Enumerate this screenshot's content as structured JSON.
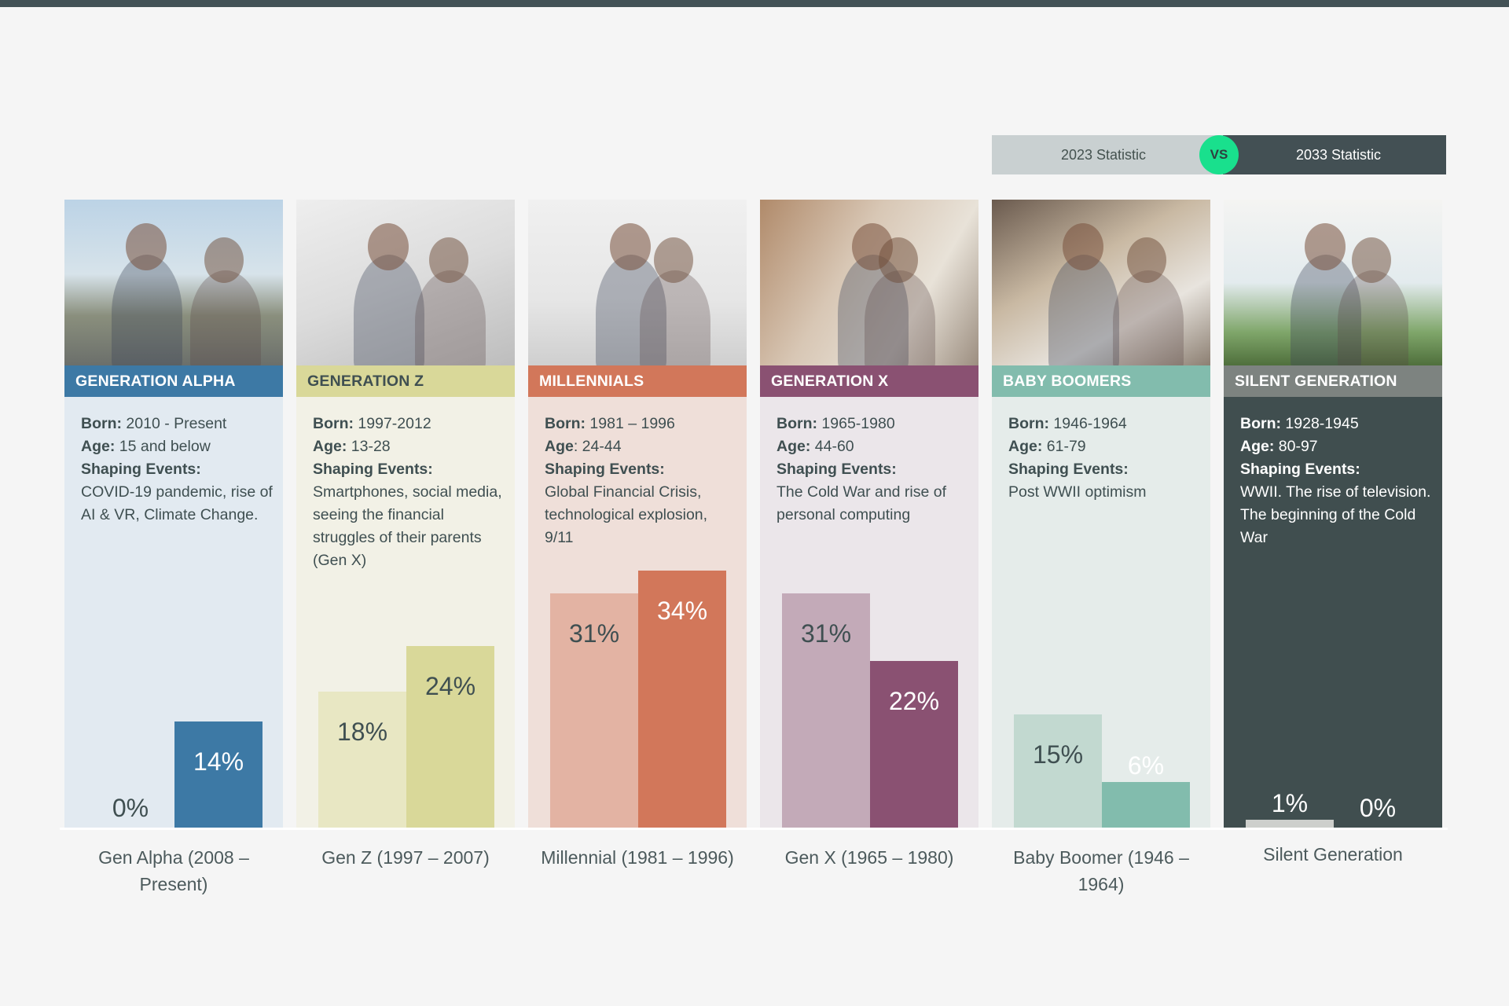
{
  "legend": {
    "left_label": "2023 Statistic",
    "vs_label": "VS",
    "right_label": "2033 Statistic"
  },
  "generations": [
    {
      "title": "GENERATION ALPHA",
      "born_label": "Born:",
      "born": " 2010 - Present",
      "age_label": "Age:",
      "age": " 15 and below",
      "events_label": "Shaping Events:",
      "events": "COVID-19 pandemic, rise of AI & VR, Climate Change.",
      "v2023": "0%",
      "v2033": "14%",
      "xlabel": "Gen Alpha (2008 – Present)",
      "photo": "teen girls laughing outdoors"
    },
    {
      "title": "GENERATION Z",
      "born_label": "Born:",
      "born": " 1997-2012",
      "age_label": "Age:",
      "age": " 13-28",
      "events_label": "Shaping Events:",
      "events": "Smartphones, social media, seeing the financial struggles of their parents (Gen X)",
      "v2023": "18%",
      "v2033": "24%",
      "xlabel": "Gen Z (1997 – 2007)",
      "photo": "two young women reviewing papers"
    },
    {
      "title": "MILLENNIALS",
      "born_label": "Born:",
      "born": " 1981 – 1996",
      "age_label": "Age",
      "age": ": 24-44",
      "events_label": "Shaping Events:",
      "events": "Global Financial Crisis, technological explosion, 9/11",
      "v2023": "31%",
      "v2033": "34%",
      "xlabel": "Millennial (1981 – 1996)",
      "photo": "man presenting at whiteboard"
    },
    {
      "title": "GENERATION X",
      "born_label": "Born:",
      "born": " 1965-1980",
      "age_label": "Age:",
      "age": " 44-60",
      "events_label": "Shaping Events:",
      "events": "The Cold War and rise of personal computing",
      "v2023": "31%",
      "v2033": "22%",
      "xlabel": "Gen X (1965 – 1980)",
      "photo": "two colleagues at laptop"
    },
    {
      "title": "BABY BOOMERS",
      "born_label": "Born:",
      "born": " 1946-1964",
      "age_label": "Age:",
      "age": " 61-79",
      "events_label": "Shaping Events:",
      "events": "Post WWII optimism",
      "v2023": "15%",
      "v2033": "6%",
      "xlabel": "Baby Boomer (1946 – 1964)",
      "photo": "older woman with tablet"
    },
    {
      "title": "SILENT GENERATION",
      "born_label": "Born:",
      "born": " 1928-1945",
      "age_label": "Age:",
      "age": " 80-97",
      "events_label": "Shaping Events:",
      "events": "WWII. The rise of television. The beginning of the Cold War",
      "v2023": "1%",
      "v2033": "0%",
      "xlabel": "Silent Generation",
      "photo": "grandfather and grandson gardening"
    }
  ],
  "colors": {
    "alpha": {
      "header": "#3d79a5",
      "bg": "#e2eaf1",
      "bar2023": "#e2eaf1",
      "bar2033": "#3d79a5"
    },
    "genz": {
      "header": "#d9d899",
      "bg": "#f2f1e6",
      "bar2023": "#e8e7c3",
      "bar2033": "#d9d899"
    },
    "millennials": {
      "header": "#d2775a",
      "bg": "#efdfd9",
      "bar2023": "#e3b3a3",
      "bar2033": "#d2775a"
    },
    "genx": {
      "header": "#8a5172",
      "bg": "#ebe6ea",
      "bar2023": "#c3aab8",
      "bar2033": "#8a5172"
    },
    "boomers": {
      "header": "#82bcad",
      "bg": "#e5ecea",
      "bar2023": "#c2d9d0",
      "bar2033": "#82bcad"
    },
    "silent": {
      "header": "#7d8380",
      "bg": "#404e4f",
      "bar2023": "#cdcfcc",
      "bar2033": "#404e4f"
    }
  },
  "chart_data": {
    "type": "bar",
    "title": "",
    "categories": [
      "Gen Alpha (2008 – Present)",
      "Gen Z (1997 – 2007)",
      "Millennial (1981 – 1996)",
      "Gen X (1965 – 1980)",
      "Baby Boomer (1946 – 1964)",
      "Silent Generation"
    ],
    "series": [
      {
        "name": "2023 Statistic",
        "values": [
          0,
          18,
          31,
          31,
          15,
          1
        ]
      },
      {
        "name": "2033 Statistic",
        "values": [
          14,
          24,
          34,
          22,
          6,
          0
        ]
      }
    ],
    "value_suffix": "%",
    "xlabel": "",
    "ylabel": "",
    "ylim": [
      0,
      35
    ],
    "grid": false,
    "legend_position": "top-right"
  }
}
